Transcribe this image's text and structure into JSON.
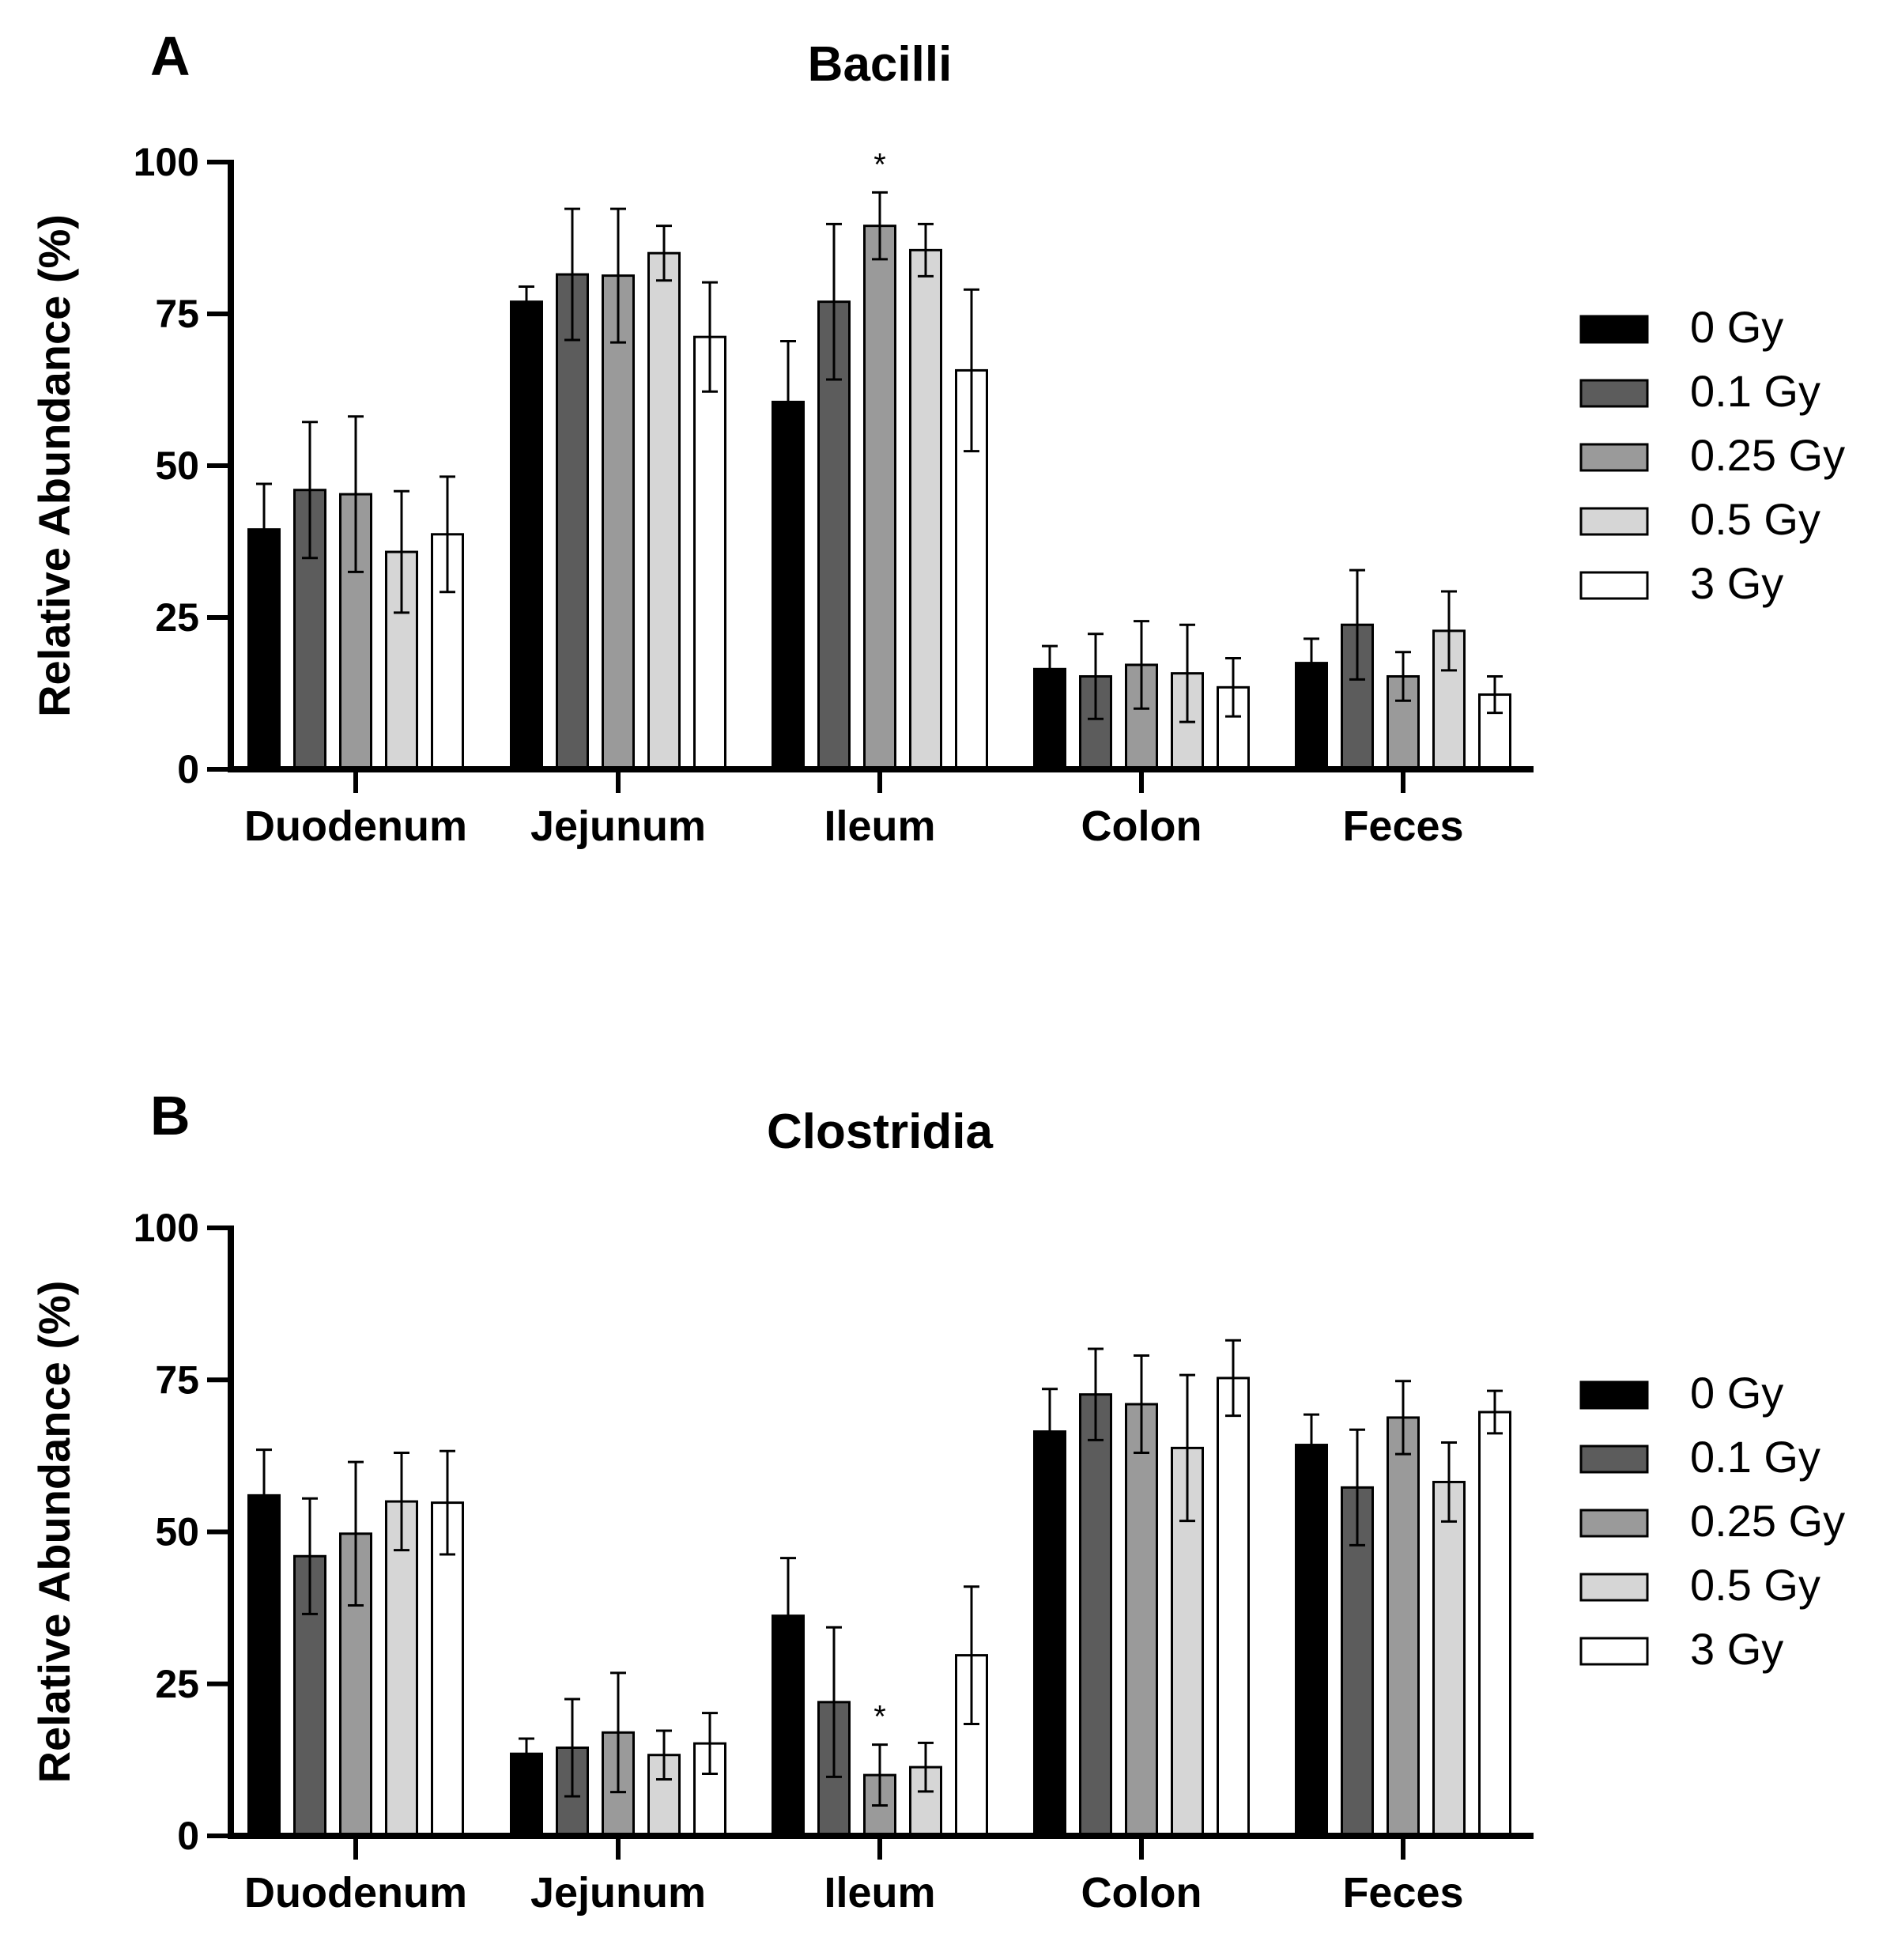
{
  "chart_data": [
    {
      "type": "bar",
      "panel": "A",
      "title": "Bacilli",
      "xlabel": "",
      "ylabel": "Relative Abundance (%)",
      "ylim": [
        0,
        100
      ],
      "yticks": [
        0,
        25,
        50,
        75,
        100
      ],
      "categories": [
        "Duodenum",
        "Jejunum",
        "Ileum",
        "Colon",
        "Feces"
      ],
      "legend_position": "right",
      "series": [
        {
          "name": "0 Gy",
          "color": "#000000",
          "values": [
            39.5,
            77,
            60.5,
            16.5,
            17.5
          ],
          "errors": [
            7.5,
            2.5,
            10,
            3.8,
            4
          ]
        },
        {
          "name": "0.1 Gy",
          "color": "#5c5c5c",
          "values": [
            46,
            81.5,
            77,
            15.3,
            23.8
          ],
          "errors": [
            11.2,
            10.8,
            12.8,
            7,
            9
          ]
        },
        {
          "name": "0.25 Gy",
          "color": "#9a9a9a",
          "values": [
            45.3,
            81.3,
            89.5,
            17.2,
            15.3
          ],
          "errors": [
            12.8,
            11,
            5.5,
            7.2,
            4
          ]
        },
        {
          "name": "0.5 Gy",
          "color": "#d6d6d6",
          "values": [
            35.8,
            85,
            85.5,
            15.8,
            22.8
          ],
          "errors": [
            10,
            4.5,
            4.3,
            8,
            6.5
          ]
        },
        {
          "name": "3 Gy",
          "color": "#ffffff",
          "values": [
            38.7,
            71.2,
            65.7,
            13.5,
            12.3
          ],
          "errors": [
            9.5,
            9,
            13.3,
            4.8,
            3
          ]
        }
      ],
      "annotations": [
        {
          "text": "*",
          "category": "Ileum",
          "series": "0.25 Gy"
        }
      ]
    },
    {
      "type": "bar",
      "panel": "B",
      "title": "Clostridia",
      "xlabel": "",
      "ylabel": "Relative Abundance (%)",
      "ylim": [
        0,
        100
      ],
      "yticks": [
        0,
        25,
        50,
        75,
        100
      ],
      "categories": [
        "Duodenum",
        "Jejunum",
        "Ileum",
        "Colon",
        "Feces"
      ],
      "legend_position": "right",
      "series": [
        {
          "name": "0 Gy",
          "color": "#000000",
          "values": [
            56,
            13.5,
            36.2,
            66.5,
            64.3
          ],
          "errors": [
            7.5,
            2.5,
            9.5,
            7,
            5
          ]
        },
        {
          "name": "0.1 Gy",
          "color": "#5c5c5c",
          "values": [
            46,
            14.5,
            22,
            72.6,
            57.3
          ],
          "errors": [
            9.5,
            8,
            12.3,
            7.5,
            9.5
          ]
        },
        {
          "name": "0.25 Gy",
          "color": "#9a9a9a",
          "values": [
            49.7,
            17,
            10,
            71,
            68.8
          ],
          "errors": [
            11.8,
            9.8,
            5,
            8,
            6
          ]
        },
        {
          "name": "0.5 Gy",
          "color": "#d6d6d6",
          "values": [
            55,
            13.3,
            11.3,
            63.8,
            58.2
          ],
          "errors": [
            8,
            4,
            4,
            12,
            6.5
          ]
        },
        {
          "name": "3 Gy",
          "color": "#ffffff",
          "values": [
            54.8,
            15.2,
            29.7,
            75.3,
            69.7
          ],
          "errors": [
            8.5,
            5,
            11.3,
            6.2,
            3.5
          ]
        }
      ],
      "annotations": [
        {
          "text": "*",
          "category": "Ileum",
          "series": "0.25 Gy"
        }
      ]
    }
  ]
}
